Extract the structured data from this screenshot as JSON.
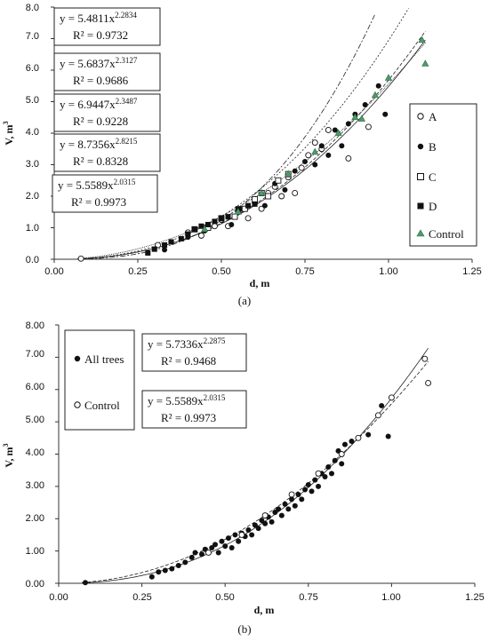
{
  "chart_data": [
    {
      "type": "scatter",
      "caption": "(a)",
      "xlabel": "d, m",
      "ylabel": "V, m",
      "ylabel_sup": "3",
      "xlim": [
        0,
        1.25
      ],
      "ylim": [
        0,
        8
      ],
      "x_ticks": [
        "0.00",
        "0.25",
        "0.50",
        "0.75",
        "1.00",
        "1.25"
      ],
      "y_ticks": [
        "0.0",
        "1.0",
        "2.0",
        "3.0",
        "4.0",
        "5.0",
        "6.0",
        "7.0",
        "8.0"
      ],
      "equations": [
        {
          "base": "y = 5.4811x",
          "exp": "2.2834",
          "r2": "R² = 0.9732",
          "a": 5.4811,
          "b": 2.2834
        },
        {
          "base": "y = 5.6837x",
          "exp": "2.3127",
          "r2": "R² = 0.9686",
          "a": 5.6837,
          "b": 2.3127
        },
        {
          "base": "y = 6.9447x",
          "exp": "2.3487",
          "r2": "R² = 0.9228",
          "a": 6.9447,
          "b": 2.3487
        },
        {
          "base": "y = 8.7356x",
          "exp": "2.8215",
          "r2": "R² = 0.8328",
          "a": 8.7356,
          "b": 2.8215
        },
        {
          "base": "y = 5.5589x",
          "exp": "2.0315",
          "r2": "R² = 0.9973",
          "a": 5.5589,
          "b": 2.0315
        }
      ],
      "legend": [
        {
          "label": "A",
          "marker": "open-circle"
        },
        {
          "label": "B",
          "marker": "filled-circle"
        },
        {
          "label": "C",
          "marker": "open-square"
        },
        {
          "label": "D",
          "marker": "filled-square"
        },
        {
          "label": "Control",
          "marker": "green-triangle"
        }
      ],
      "series": [
        {
          "name": "A",
          "marker": "open-circle",
          "points": [
            [
              0.08,
              0.02
            ],
            [
              0.31,
              0.45
            ],
            [
              0.4,
              0.85
            ],
            [
              0.44,
              0.75
            ],
            [
              0.48,
              1.05
            ],
            [
              0.5,
              1.25
            ],
            [
              0.52,
              1.05
            ],
            [
              0.55,
              1.5
            ],
            [
              0.58,
              1.3
            ],
            [
              0.6,
              1.8
            ],
            [
              0.62,
              1.6
            ],
            [
              0.64,
              2.1
            ],
            [
              0.66,
              2.3
            ],
            [
              0.68,
              2.0
            ],
            [
              0.7,
              2.6
            ],
            [
              0.72,
              2.1
            ],
            [
              0.74,
              2.9
            ],
            [
              0.76,
              3.3
            ],
            [
              0.78,
              3.7
            ],
            [
              0.8,
              3.5
            ],
            [
              0.82,
              4.1
            ],
            [
              0.88,
              3.2
            ],
            [
              0.94,
              4.2
            ]
          ]
        },
        {
          "name": "B",
          "marker": "filled-circle",
          "points": [
            [
              0.33,
              0.3
            ],
            [
              0.4,
              0.7
            ],
            [
              0.45,
              0.9
            ],
            [
              0.5,
              1.3
            ],
            [
              0.53,
              1.1
            ],
            [
              0.56,
              1.6
            ],
            [
              0.6,
              1.9
            ],
            [
              0.63,
              1.7
            ],
            [
              0.66,
              2.4
            ],
            [
              0.69,
              2.2
            ],
            [
              0.72,
              2.8
            ],
            [
              0.75,
              3.1
            ],
            [
              0.78,
              3.0
            ],
            [
              0.8,
              3.6
            ],
            [
              0.82,
              3.3
            ],
            [
              0.84,
              4.1
            ],
            [
              0.86,
              3.6
            ],
            [
              0.88,
              4.3
            ],
            [
              0.9,
              4.6
            ],
            [
              0.93,
              4.9
            ],
            [
              0.97,
              5.5
            ],
            [
              0.99,
              4.6
            ]
          ]
        },
        {
          "name": "C",
          "marker": "open-square",
          "points": [
            [
              0.42,
              0.95
            ],
            [
              0.46,
              1.0
            ],
            [
              0.5,
              1.3
            ],
            [
              0.54,
              1.35
            ],
            [
              0.57,
              1.6
            ],
            [
              0.6,
              1.9
            ],
            [
              0.62,
              2.1
            ],
            [
              0.64,
              2.0
            ],
            [
              0.67,
              2.5
            ],
            [
              0.7,
              2.7
            ]
          ]
        },
        {
          "name": "D",
          "marker": "filled-square",
          "points": [
            [
              0.28,
              0.2
            ],
            [
              0.3,
              0.32
            ],
            [
              0.33,
              0.45
            ],
            [
              0.35,
              0.55
            ],
            [
              0.38,
              0.65
            ],
            [
              0.4,
              0.8
            ],
            [
              0.42,
              0.95
            ],
            [
              0.44,
              1.05
            ],
            [
              0.46,
              1.1
            ],
            [
              0.48,
              1.2
            ],
            [
              0.5,
              1.3
            ],
            [
              0.52,
              1.35
            ],
            [
              0.55,
              1.6
            ],
            [
              0.58,
              1.7
            ],
            [
              0.6,
              1.75
            ]
          ]
        },
        {
          "name": "Control",
          "marker": "green-triangle",
          "points": [
            [
              0.45,
              0.95
            ],
            [
              0.55,
              1.5
            ],
            [
              0.62,
              2.1
            ],
            [
              0.7,
              2.7
            ],
            [
              0.78,
              3.4
            ],
            [
              0.85,
              4.0
            ],
            [
              0.9,
              4.5
            ],
            [
              0.92,
              4.45
            ],
            [
              0.96,
              5.2
            ],
            [
              1.0,
              5.75
            ],
            [
              1.1,
              6.95
            ],
            [
              1.11,
              6.2
            ]
          ]
        }
      ]
    },
    {
      "type": "scatter",
      "caption": "(b)",
      "xlabel": "d, m",
      "ylabel": "V, m",
      "ylabel_sup": "3",
      "xlim": [
        0,
        1.25
      ],
      "ylim": [
        0,
        8
      ],
      "x_ticks": [
        "0.00",
        "0.25",
        "0.50",
        "0.75",
        "1.00",
        "1.25"
      ],
      "y_ticks": [
        "0.00",
        "1.00",
        "2.00",
        "3.00",
        "4.00",
        "5.00",
        "6.00",
        "7.00",
        "8.00"
      ],
      "equations": [
        {
          "base": "y = 5.7336x",
          "exp": "2.2875",
          "r2": "R² = 0.9468",
          "a": 5.7336,
          "b": 2.2875
        },
        {
          "base": "y = 5.5589x",
          "exp": "2.0315",
          "r2": "R² = 0.9973",
          "a": 5.5589,
          "b": 2.0315
        }
      ],
      "legend": [
        {
          "label": "All trees",
          "marker": "filled-circle"
        },
        {
          "label": "Control",
          "marker": "open-circle"
        }
      ],
      "series": [
        {
          "name": "All trees",
          "marker": "filled-circle",
          "points": [
            [
              0.08,
              0.02
            ],
            [
              0.28,
              0.2
            ],
            [
              0.3,
              0.35
            ],
            [
              0.32,
              0.4
            ],
            [
              0.34,
              0.45
            ],
            [
              0.36,
              0.55
            ],
            [
              0.38,
              0.65
            ],
            [
              0.4,
              0.8
            ],
            [
              0.41,
              0.95
            ],
            [
              0.43,
              0.9
            ],
            [
              0.44,
              1.05
            ],
            [
              0.46,
              1.1
            ],
            [
              0.47,
              1.2
            ],
            [
              0.48,
              0.95
            ],
            [
              0.49,
              1.3
            ],
            [
              0.5,
              1.15
            ],
            [
              0.51,
              1.4
            ],
            [
              0.52,
              1.1
            ],
            [
              0.53,
              1.5
            ],
            [
              0.54,
              1.3
            ],
            [
              0.55,
              1.55
            ],
            [
              0.56,
              1.45
            ],
            [
              0.57,
              1.65
            ],
            [
              0.58,
              1.5
            ],
            [
              0.59,
              1.8
            ],
            [
              0.6,
              1.7
            ],
            [
              0.61,
              1.95
            ],
            [
              0.62,
              1.85
            ],
            [
              0.63,
              2.05
            ],
            [
              0.64,
              1.9
            ],
            [
              0.65,
              2.2
            ],
            [
              0.66,
              2.3
            ],
            [
              0.67,
              2.1
            ],
            [
              0.68,
              2.45
            ],
            [
              0.69,
              2.3
            ],
            [
              0.7,
              2.6
            ],
            [
              0.71,
              2.4
            ],
            [
              0.72,
              2.75
            ],
            [
              0.73,
              2.6
            ],
            [
              0.74,
              2.9
            ],
            [
              0.75,
              3.05
            ],
            [
              0.76,
              2.85
            ],
            [
              0.77,
              3.2
            ],
            [
              0.78,
              3.0
            ],
            [
              0.79,
              3.4
            ],
            [
              0.8,
              3.3
            ],
            [
              0.81,
              3.6
            ],
            [
              0.82,
              3.4
            ],
            [
              0.83,
              3.8
            ],
            [
              0.84,
              4.1
            ],
            [
              0.85,
              3.7
            ],
            [
              0.86,
              4.3
            ],
            [
              0.88,
              4.4
            ],
            [
              0.9,
              4.5
            ],
            [
              0.93,
              4.6
            ],
            [
              0.97,
              5.5
            ],
            [
              0.99,
              4.55
            ]
          ]
        },
        {
          "name": "Control",
          "marker": "open-circle",
          "points": [
            [
              0.45,
              0.95
            ],
            [
              0.55,
              1.5
            ],
            [
              0.62,
              2.1
            ],
            [
              0.7,
              2.75
            ],
            [
              0.78,
              3.4
            ],
            [
              0.85,
              4.0
            ],
            [
              0.9,
              4.5
            ],
            [
              0.96,
              5.2
            ],
            [
              1.0,
              5.75
            ],
            [
              1.1,
              6.95
            ],
            [
              1.11,
              6.2
            ]
          ]
        }
      ]
    }
  ]
}
